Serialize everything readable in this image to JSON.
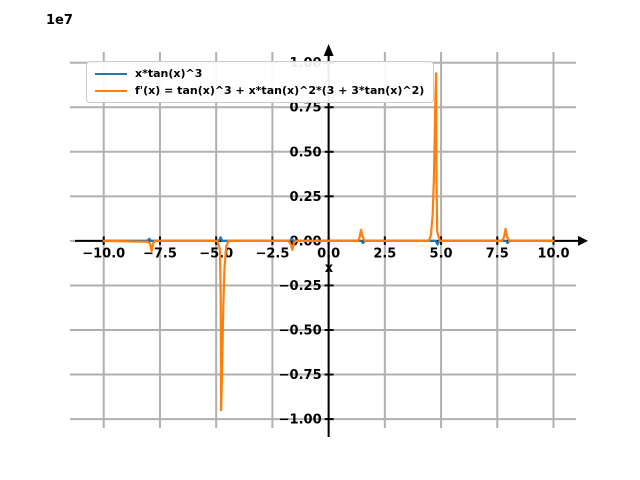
{
  "figure": {
    "offset_text": "1e7",
    "background": "#ffffff"
  },
  "chart_data": {
    "type": "line",
    "title": "",
    "xlabel": "x",
    "ylabel": "",
    "y_offset_text": "1e7",
    "y_unit_multiplier": 10000000,
    "xlim": [
      -11.5,
      11.0
    ],
    "ylim": [
      -1.05,
      1.06
    ],
    "grid": true,
    "grid_color": "#b0b0b0",
    "axis_color": "#000000",
    "legend_position": "upper-left",
    "x_tick_values": [
      -10,
      -7.5,
      -5,
      -2.5,
      0,
      2.5,
      5,
      7.5,
      10
    ],
    "x_tick_labels": [
      "−10.0",
      "−7.5",
      "−5.0",
      "−2.5",
      "0.0",
      "2.5",
      "5.0",
      "7.5",
      "10.0"
    ],
    "y_tick_values": [
      -1,
      -0.75,
      -0.5,
      -0.25,
      0,
      0.25,
      0.5,
      0.75,
      1
    ],
    "y_tick_labels": [
      "−1.00",
      "−0.75",
      "−0.50",
      "−0.25",
      "0.00",
      "0.25",
      "0.50",
      "0.75",
      "1.00"
    ],
    "series": [
      {
        "name": "x*tan(x)^3",
        "color": "#1f77b4",
        "points": [
          [
            -10,
            0
          ],
          [
            -8.06,
            0
          ],
          [
            -7.98,
            0.012
          ],
          [
            -7.9,
            0
          ],
          [
            -4.88,
            0
          ],
          [
            -4.8,
            0.02
          ],
          [
            -4.73,
            0
          ],
          [
            -1.72,
            0
          ],
          [
            -1.63,
            0.012
          ],
          [
            -1.56,
            0
          ],
          [
            1.45,
            0
          ],
          [
            1.53,
            -0.012
          ],
          [
            1.62,
            0
          ],
          [
            4.76,
            0
          ],
          [
            4.84,
            -0.02
          ],
          [
            4.92,
            0
          ],
          [
            7.88,
            0
          ],
          [
            7.96,
            -0.012
          ],
          [
            8.05,
            0
          ],
          [
            10,
            0
          ]
        ]
      },
      {
        "name": "f'(x) = tan(x)^3 + x*tan(x)^2*(3 + 3*tan(x)^2)",
        "color": "#ff7f0e",
        "points": [
          [
            -10,
            0
          ],
          [
            -8.02,
            -0.005
          ],
          [
            -7.93,
            -0.02
          ],
          [
            -7.87,
            -0.057
          ],
          [
            -7.81,
            -0.015
          ],
          [
            -7.72,
            0
          ],
          [
            -5.0,
            0
          ],
          [
            -4.95,
            0
          ],
          [
            -4.83,
            -0.05
          ],
          [
            -4.8,
            -0.3
          ],
          [
            -4.78,
            -0.95
          ],
          [
            -4.75,
            -0.8
          ],
          [
            -4.72,
            -0.6
          ],
          [
            -4.68,
            -0.35
          ],
          [
            -4.63,
            -0.15
          ],
          [
            -4.55,
            -0.03
          ],
          [
            -4.45,
            0
          ],
          [
            -1.78,
            0
          ],
          [
            -1.68,
            -0.02
          ],
          [
            -1.61,
            -0.05
          ],
          [
            -1.54,
            -0.01
          ],
          [
            -1.45,
            0
          ],
          [
            1.3,
            0
          ],
          [
            1.38,
            0.02
          ],
          [
            1.44,
            0.062
          ],
          [
            1.5,
            0.03
          ],
          [
            1.57,
            0.005
          ],
          [
            1.65,
            0
          ],
          [
            4.45,
            0
          ],
          [
            4.55,
            0.03
          ],
          [
            4.63,
            0.15
          ],
          [
            4.68,
            0.35
          ],
          [
            4.72,
            0.6
          ],
          [
            4.75,
            0.8
          ],
          [
            4.78,
            0.94
          ],
          [
            4.8,
            0.3
          ],
          [
            4.83,
            0.05
          ],
          [
            4.95,
            0
          ],
          [
            7.7,
            0
          ],
          [
            7.8,
            0.02
          ],
          [
            7.87,
            0.068
          ],
          [
            7.94,
            0.02
          ],
          [
            8.03,
            0
          ],
          [
            10,
            0
          ]
        ]
      }
    ]
  }
}
